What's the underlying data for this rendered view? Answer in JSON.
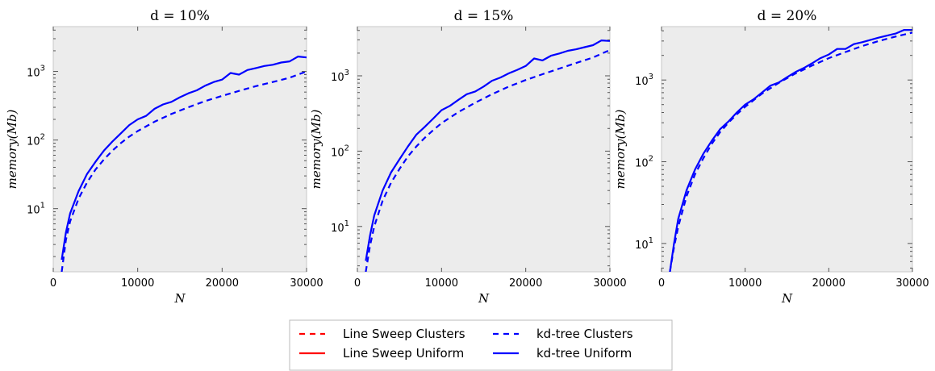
{
  "chart_data": [
    {
      "type": "line",
      "title": "d = 10%",
      "xlabel": "N",
      "ylabel": "memory(Mb)",
      "xlim": [
        0,
        30000
      ],
      "ylim": [
        1.2,
        4500
      ],
      "yscale": "log",
      "xticks": [
        0,
        10000,
        20000,
        30000
      ],
      "yticks": [
        10,
        100,
        1000
      ],
      "ytick_labels": [
        [
          "10",
          "1"
        ],
        [
          "10",
          "2"
        ],
        [
          "10",
          "3"
        ]
      ],
      "grid": false,
      "series": [
        {
          "name": "kd-tree Clusters",
          "color": "#0000ff",
          "dash": "dashed",
          "x": [
            1000,
            1500,
            2000,
            3000,
            4000,
            5000,
            6000,
            7000,
            8000,
            9000,
            10000,
            12000,
            14000,
            16000,
            18000,
            20000,
            22000,
            24000,
            26000,
            28000,
            30000
          ],
          "y": [
            1.2,
            3.5,
            6.5,
            14,
            24,
            37,
            52,
            70,
            90,
            112,
            135,
            185,
            240,
            300,
            370,
            440,
            520,
            610,
            700,
            810,
            1000
          ]
        },
        {
          "name": "kd-tree Uniform",
          "color": "#0000ff",
          "dash": "solid",
          "x": [
            1000,
            1500,
            2000,
            3000,
            4000,
            5000,
            6000,
            7000,
            8000,
            9000,
            10000,
            11000,
            12000,
            13000,
            14000,
            15000,
            16000,
            17000,
            18000,
            19000,
            20000,
            21000,
            22000,
            23000,
            24000,
            25000,
            26000,
            27000,
            28000,
            29000,
            30000
          ],
          "y": [
            1.8,
            4.5,
            8.5,
            18,
            32,
            48,
            70,
            95,
            125,
            165,
            200,
            225,
            285,
            330,
            360,
            420,
            480,
            530,
            620,
            700,
            760,
            950,
            900,
            1050,
            1120,
            1200,
            1250,
            1350,
            1400,
            1650,
            1600
          ]
        }
      ]
    },
    {
      "type": "line",
      "title": "d = 15%",
      "xlabel": "N",
      "ylabel": "memory(Mb)",
      "xlim": [
        0,
        30000
      ],
      "ylim": [
        2.5,
        4500
      ],
      "yscale": "log",
      "xticks": [
        0,
        10000,
        20000,
        30000
      ],
      "yticks": [
        10,
        100,
        1000
      ],
      "ytick_labels": [
        [
          "10",
          "1"
        ],
        [
          "10",
          "2"
        ],
        [
          "10",
          "3"
        ]
      ],
      "grid": false,
      "series": [
        {
          "name": "kd-tree Clusters",
          "color": "#0000ff",
          "dash": "dashed",
          "x": [
            1000,
            1500,
            2000,
            3000,
            4000,
            5000,
            6000,
            7000,
            8000,
            9000,
            10000,
            12000,
            14000,
            16000,
            18000,
            20000,
            22000,
            24000,
            26000,
            28000,
            30000
          ],
          "y": [
            2.5,
            5.5,
            10,
            22,
            38,
            58,
            85,
            115,
            150,
            190,
            235,
            330,
            440,
            570,
            720,
            880,
            1050,
            1250,
            1480,
            1750,
            2200
          ]
        },
        {
          "name": "kd-tree Uniform",
          "color": "#0000ff",
          "dash": "solid",
          "x": [
            1000,
            1500,
            2000,
            3000,
            4000,
            5000,
            6000,
            7000,
            8000,
            9000,
            10000,
            11000,
            12000,
            13000,
            14000,
            15000,
            16000,
            17000,
            18000,
            19000,
            20000,
            21000,
            22000,
            23000,
            24000,
            25000,
            26000,
            27000,
            28000,
            29000,
            30000
          ],
          "y": [
            3.5,
            7.5,
            14,
            30,
            52,
            78,
            115,
            165,
            210,
            270,
            350,
            400,
            480,
            570,
            620,
            720,
            860,
            950,
            1080,
            1200,
            1350,
            1700,
            1600,
            1850,
            1980,
            2150,
            2250,
            2400,
            2550,
            2950,
            2900
          ]
        }
      ]
    },
    {
      "type": "line",
      "title": "d = 20%",
      "xlabel": "N",
      "ylabel": "memory(Mb)",
      "xlim": [
        0,
        30000
      ],
      "ylim": [
        4.5,
        4500
      ],
      "yscale": "log",
      "xticks": [
        0,
        10000,
        20000,
        30000
      ],
      "yticks": [
        10,
        100,
        1000
      ],
      "ytick_labels": [
        [
          "10",
          "1"
        ],
        [
          "10",
          "2"
        ],
        [
          "10",
          "3"
        ]
      ],
      "grid": false,
      "series": [
        {
          "name": "kd-tree Clusters",
          "color": "#0000ff",
          "dash": "dashed",
          "x": [
            1000,
            1500,
            2000,
            3000,
            4000,
            5000,
            6000,
            7000,
            8000,
            9000,
            10000,
            12000,
            14000,
            16000,
            18000,
            20000,
            22000,
            24000,
            26000,
            28000,
            30000
          ],
          "y": [
            4.5,
            9,
            16,
            38,
            70,
            110,
            165,
            230,
            300,
            380,
            470,
            680,
            920,
            1200,
            1500,
            1850,
            2200,
            2600,
            3000,
            3400,
            3800
          ]
        },
        {
          "name": "kd-tree Uniform",
          "color": "#0000ff",
          "dash": "solid",
          "x": [
            1000,
            1500,
            2000,
            3000,
            4000,
            5000,
            6000,
            7000,
            8000,
            9000,
            10000,
            11000,
            12000,
            13000,
            14000,
            15000,
            16000,
            17000,
            18000,
            19000,
            20000,
            21000,
            22000,
            23000,
            24000,
            25000,
            26000,
            27000,
            28000,
            29000,
            30000
          ],
          "y": [
            4.5,
            10,
            20,
            45,
            80,
            125,
            180,
            250,
            310,
            400,
            500,
            580,
            700,
            850,
            930,
            1080,
            1250,
            1400,
            1600,
            1850,
            2050,
            2400,
            2400,
            2750,
            2900,
            3100,
            3300,
            3500,
            3700,
            4100,
            4100
          ]
        }
      ]
    }
  ],
  "legend": {
    "position": "bottom-center",
    "entries": [
      {
        "label": "Line Sweep Clusters",
        "color": "#ff0000",
        "dash": "dashed"
      },
      {
        "label": "Line Sweep Uniform",
        "color": "#ff0000",
        "dash": "solid"
      },
      {
        "label": "kd-tree Clusters",
        "color": "#0000ff",
        "dash": "dashed"
      },
      {
        "label": "kd-tree Uniform",
        "color": "#0000ff",
        "dash": "solid"
      }
    ]
  }
}
